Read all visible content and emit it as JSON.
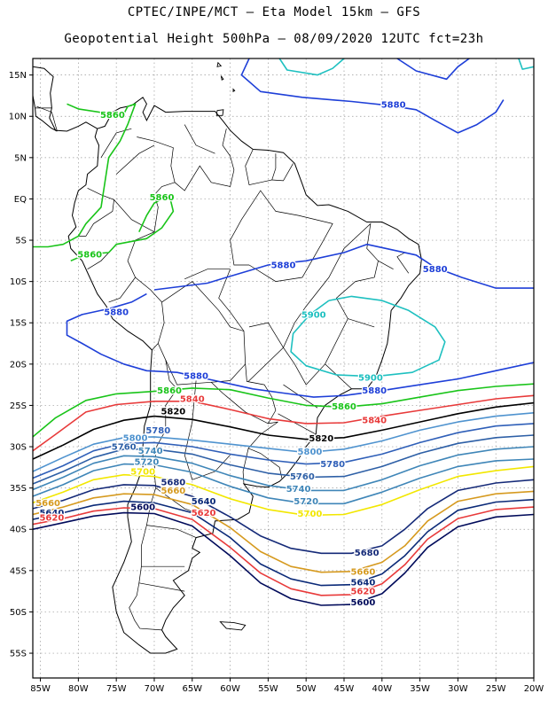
{
  "header": {
    "title_line1": "CPTEC/INPE/MCT –  Eta Model 15km – GFS",
    "title_line2": "Geopotential Height 500hPa – 08/09/2020 12UTC fct=23h"
  },
  "map": {
    "lon_range": [
      -86,
      -20
    ],
    "lat_range": [
      -58,
      17
    ],
    "lon_ticks": [
      "85W",
      "80W",
      "75W",
      "70W",
      "65W",
      "60W",
      "55W",
      "50W",
      "45W",
      "40W",
      "35W",
      "30W",
      "25W",
      "20W"
    ],
    "lat_ticks": [
      "15N",
      "10N",
      "5N",
      "EQ",
      "5S",
      "10S",
      "15S",
      "20S",
      "25S",
      "30S",
      "35S",
      "40S",
      "45S",
      "50S",
      "55S"
    ],
    "gridlines": true
  },
  "contour_colors": {
    "5600": "#000a5a",
    "5620": "#e83a3a",
    "5640": "#0b2a78",
    "5660": "#d69a1f",
    "5680": "#152a78",
    "5700": "#f2e700",
    "5720": "#3f86b8",
    "5740": "#3f86b8",
    "5760": "#2d5fa6",
    "5780": "#2f5fb8",
    "5800": "#4f93cf",
    "5820": "#000000",
    "5840": "#e83a3a",
    "5860": "#19c419",
    "5880": "#1e3fd8",
    "5900": "#1ec0c0"
  },
  "contour_labels": [
    {
      "text": "5880",
      "lon": -38.5,
      "lat": 11.4,
      "level": "5880"
    },
    {
      "text": "5860",
      "lon": -75.5,
      "lat": 10.2,
      "level": "5860"
    },
    {
      "text": "5860",
      "lon": -69.0,
      "lat": 0.2,
      "level": "5860"
    },
    {
      "text": "5860",
      "lon": -78.5,
      "lat": -6.7,
      "level": "5860"
    },
    {
      "text": "5880",
      "lon": -53.0,
      "lat": -8.0,
      "level": "5880"
    },
    {
      "text": "5880",
      "lon": -33.0,
      "lat": -8.5,
      "level": "5880"
    },
    {
      "text": "5880",
      "lon": -75.0,
      "lat": -13.7,
      "level": "5880"
    },
    {
      "text": "5900",
      "lon": -49.0,
      "lat": -14.0,
      "level": "5900"
    },
    {
      "text": "5880",
      "lon": -64.5,
      "lat": -21.4,
      "level": "5880"
    },
    {
      "text": "5900",
      "lon": -41.5,
      "lat": -21.6,
      "level": "5900"
    },
    {
      "text": "5860",
      "lon": -68.0,
      "lat": -23.2,
      "level": "5860"
    },
    {
      "text": "5880",
      "lon": -41.0,
      "lat": -23.2,
      "level": "5880"
    },
    {
      "text": "5840",
      "lon": -65.0,
      "lat": -24.2,
      "level": "5840"
    },
    {
      "text": "5860",
      "lon": -45.0,
      "lat": -25.1,
      "level": "5860"
    },
    {
      "text": "5820",
      "lon": -67.5,
      "lat": -25.7,
      "level": "5820"
    },
    {
      "text": "5840",
      "lon": -41.0,
      "lat": -26.8,
      "level": "5840"
    },
    {
      "text": "5780",
      "lon": -69.5,
      "lat": -28.0,
      "level": "5780"
    },
    {
      "text": "5820",
      "lon": -48.0,
      "lat": -29.0,
      "level": "5820"
    },
    {
      "text": "5800",
      "lon": -72.5,
      "lat": -28.9,
      "level": "5800"
    },
    {
      "text": "5760",
      "lon": -74.0,
      "lat": -30.0,
      "level": "5760"
    },
    {
      "text": "5800",
      "lon": -49.5,
      "lat": -30.6,
      "level": "5800"
    },
    {
      "text": "5740",
      "lon": -70.5,
      "lat": -30.5,
      "level": "5740"
    },
    {
      "text": "5720",
      "lon": -71.0,
      "lat": -31.8,
      "level": "5720"
    },
    {
      "text": "5780",
      "lon": -46.5,
      "lat": -32.1,
      "level": "5780"
    },
    {
      "text": "5700",
      "lon": -71.5,
      "lat": -33.0,
      "level": "5700"
    },
    {
      "text": "5760",
      "lon": -50.5,
      "lat": -33.6,
      "level": "5760"
    },
    {
      "text": "5680",
      "lon": -67.5,
      "lat": -34.3,
      "level": "5680"
    },
    {
      "text": "5660",
      "lon": -67.5,
      "lat": -35.3,
      "level": "5660"
    },
    {
      "text": "5740",
      "lon": -51.0,
      "lat": -35.1,
      "level": "5740"
    },
    {
      "text": "5720",
      "lon": -50.0,
      "lat": -36.6,
      "level": "5720"
    },
    {
      "text": "5660",
      "lon": -84.0,
      "lat": -36.8,
      "level": "5660"
    },
    {
      "text": "5640",
      "lon": -63.5,
      "lat": -36.6,
      "level": "5640"
    },
    {
      "text": "5600",
      "lon": -71.5,
      "lat": -37.3,
      "level": "5600"
    },
    {
      "text": "5640",
      "lon": -83.5,
      "lat": -38.0,
      "level": "5640"
    },
    {
      "text": "5620",
      "lon": -63.5,
      "lat": -38.0,
      "level": "5620"
    },
    {
      "text": "5700",
      "lon": -49.5,
      "lat": -38.1,
      "level": "5700"
    },
    {
      "text": "5620",
      "lon": -83.5,
      "lat": -38.6,
      "level": "5620"
    },
    {
      "text": "5680",
      "lon": -42.0,
      "lat": -42.8,
      "level": "5680"
    },
    {
      "text": "5660",
      "lon": -42.5,
      "lat": -45.1,
      "level": "5660"
    },
    {
      "text": "5640",
      "lon": -42.5,
      "lat": -46.4,
      "level": "5640"
    },
    {
      "text": "5620",
      "lon": -42.5,
      "lat": -47.5,
      "level": "5620"
    },
    {
      "text": "5600",
      "lon": -42.5,
      "lat": -48.8,
      "level": "5600"
    }
  ]
}
